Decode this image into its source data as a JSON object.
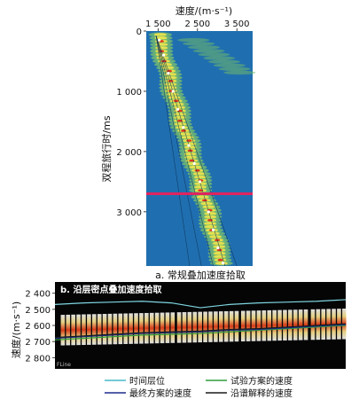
{
  "panel_a": {
    "x_axis_title": "速度/(m·s⁻¹)",
    "y_axis_title": "双程旅行时/ms",
    "caption": "a. 常规叠加速度拾取"
  },
  "panel_b": {
    "title": "b. 沿层密点叠加速度拾取",
    "y_axis_title": "速度/(m·s⁻¹)",
    "corner_label": "FLine"
  },
  "legend": {
    "items": [
      {
        "label": "时间层位",
        "color": "#45b8c8"
      },
      {
        "label": "试验方案的速度",
        "color": "#2e9e3c"
      },
      {
        "label": "最终方案的速度",
        "color": "#1d2d8c"
      },
      {
        "label": "沿谱解释的速度",
        "color": "#1a1a1a"
      }
    ]
  },
  "colors": {
    "spectrum_background": "#1f6fb0",
    "highlight_line": "#e0245e",
    "horizon_line": "#7fd6e0",
    "velocity_line": "#1a1a1a"
  },
  "chart_data": [
    {
      "type": "heatmap",
      "title": "a. 常规叠加速度拾取",
      "xlabel": "速度/(m·s⁻¹)",
      "ylabel": "双程旅行时/ms",
      "x_ticks": [
        1500,
        2500,
        3500
      ],
      "x_tick_labels": [
        "1 500",
        "2 500",
        "3 500"
      ],
      "y_ticks": [
        0,
        1000,
        2000,
        3000
      ],
      "y_tick_labels": [
        "0",
        "1 000",
        "2 000",
        "3 000"
      ],
      "xlim": [
        1200,
        3900
      ],
      "ylim": [
        0,
        3900
      ],
      "picked_velocity": {
        "time_ms": [
          150,
          400,
          700,
          1000,
          1300,
          1600,
          1900,
          2200,
          2500,
          2700,
          3000,
          3300,
          3600,
          3850
        ],
        "velocity": [
          1530,
          1640,
          1760,
          1880,
          2000,
          2140,
          2280,
          2420,
          2560,
          2640,
          2780,
          2900,
          3020,
          3150
        ]
      },
      "highlight_time_ms": 2700
    },
    {
      "type": "heatmap",
      "title": "b. 沿层密点叠加速度拾取",
      "ylabel": "速度/(m·s⁻¹)",
      "y_ticks": [
        2400,
        2500,
        2600,
        2700,
        2800
      ],
      "y_tick_labels": [
        "2 400",
        "2 500",
        "2 600",
        "2 700",
        "2 800"
      ],
      "ylim": [
        2330,
        2870
      ],
      "trace_fraction": [
        0.0,
        0.1,
        0.2,
        0.3,
        0.4,
        0.5,
        0.6,
        0.7,
        0.8,
        0.9,
        1.0
      ],
      "series": [
        {
          "name": "时间层位",
          "values": [
            2470,
            2460,
            2455,
            2450,
            2460,
            2490,
            2470,
            2460,
            2455,
            2450,
            2440
          ]
        },
        {
          "name": "试验方案的速度",
          "values": [
            2690,
            2680,
            2670,
            2660,
            2655,
            2650,
            2640,
            2630,
            2620,
            2610,
            2600
          ]
        },
        {
          "name": "最终方案的速度",
          "values": [
            2680,
            2670,
            2660,
            2650,
            2645,
            2640,
            2630,
            2625,
            2615,
            2605,
            2595
          ]
        },
        {
          "name": "沿谱解释的速度",
          "values": [
            2675,
            2665,
            2655,
            2645,
            2640,
            2635,
            2625,
            2620,
            2610,
            2600,
            2590
          ]
        }
      ]
    }
  ]
}
